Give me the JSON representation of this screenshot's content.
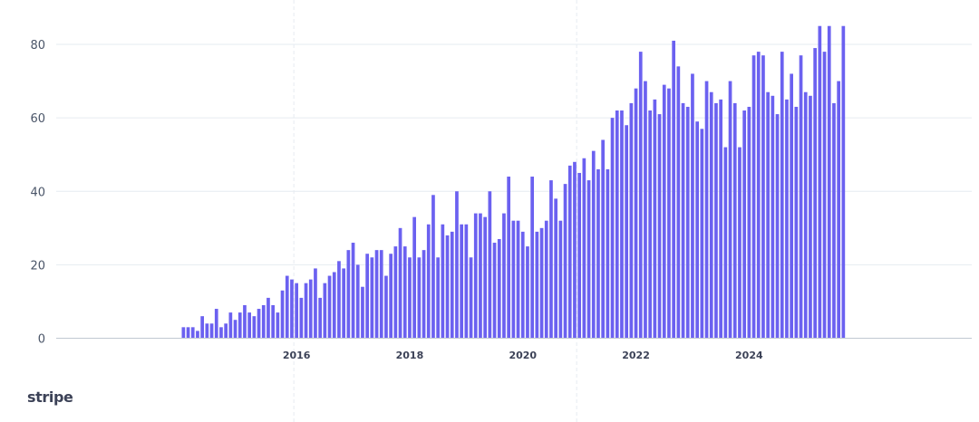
{
  "brand": {
    "logo_text": "stripe"
  },
  "colors": {
    "bar": "#6b61f0",
    "grid": "#e6ebf1",
    "baseline": "#c1c9d2",
    "vgrid": "#e6ebf1"
  },
  "chart_data": {
    "type": "bar",
    "title": "",
    "xlabel": "",
    "ylabel": "",
    "ylim": [
      0,
      88
    ],
    "yticks": [
      0,
      20,
      40,
      60,
      80
    ],
    "xticks": [
      "2016",
      "2018",
      "2020",
      "2022",
      "2024"
    ],
    "x_start": "2014-01",
    "x_end": "2024-12",
    "vertical_gridlines_at": [
      "2016",
      "2021"
    ],
    "grid": true,
    "legend": "none",
    "series": [
      {
        "values": [
          3,
          3,
          3,
          2,
          6,
          4,
          4,
          8,
          3,
          4,
          7,
          5,
          7,
          9,
          7,
          6,
          8,
          9,
          11,
          9,
          7,
          13,
          17,
          16,
          15,
          11,
          15,
          16,
          19,
          11,
          15,
          17,
          18,
          21,
          19,
          24,
          26,
          20,
          14,
          23,
          22,
          24,
          24,
          17,
          23,
          25,
          30,
          25,
          22,
          33,
          22,
          24,
          31,
          39,
          22,
          31,
          28,
          29,
          40,
          31,
          31,
          22,
          34,
          34,
          33,
          40,
          26,
          27,
          34,
          44,
          32,
          32,
          29,
          25,
          44,
          29,
          30,
          32,
          43,
          38,
          32,
          42,
          47,
          48,
          45,
          49,
          43,
          51,
          46,
          54,
          46,
          60,
          62,
          62,
          58,
          64,
          68,
          78,
          70,
          62,
          65,
          61,
          69,
          68,
          81,
          74,
          64,
          63,
          72,
          59,
          57,
          70,
          67,
          64,
          65,
          52,
          70,
          64,
          52,
          62,
          63,
          77,
          78,
          77,
          67,
          66,
          61,
          78,
          65,
          72,
          63,
          77,
          67,
          66,
          79,
          85,
          78,
          85,
          64,
          70,
          85
        ]
      }
    ]
  }
}
